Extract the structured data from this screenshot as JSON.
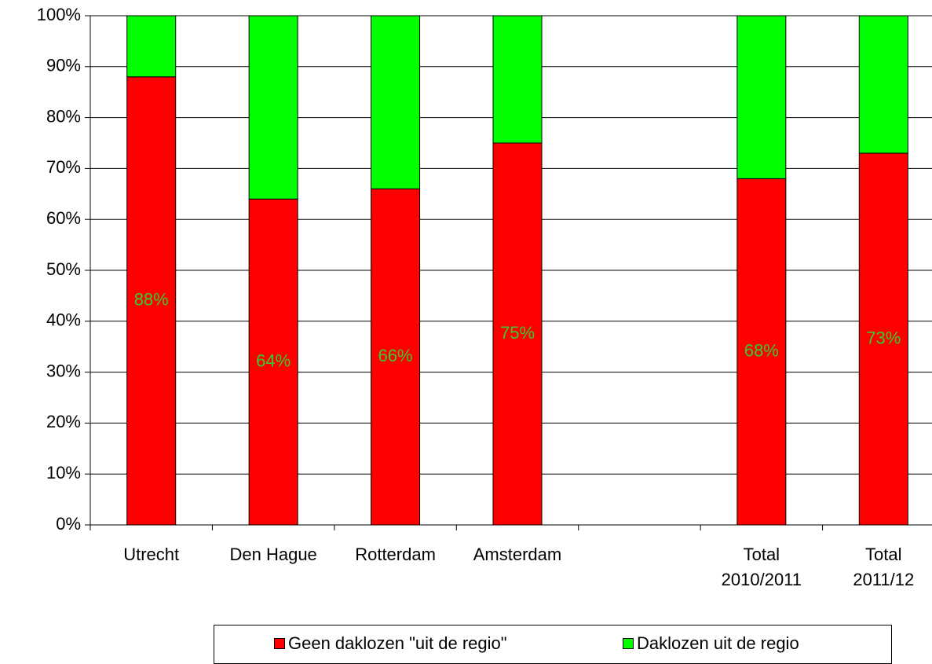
{
  "chart_data": {
    "type": "stacked_bar",
    "categories": [
      "Utrecht",
      "Den Hague",
      "Rotterdam",
      "Amsterdam",
      null,
      "Total\n2010/2011",
      "Total\n2011/12"
    ],
    "series": [
      {
        "name": "Geen daklozen \"uit de regio\"",
        "color": "#ff0000",
        "values": [
          88,
          64,
          66,
          75,
          null,
          68,
          73
        ],
        "value_labels": [
          "88%",
          "64%",
          "66%",
          "75%",
          null,
          "68%",
          "73%"
        ],
        "label_color": "#33cc33"
      },
      {
        "name": "Daklozen uit de regio",
        "color": "#00ff00",
        "values": [
          12,
          36,
          34,
          25,
          null,
          32,
          27
        ]
      }
    ],
    "ylim": [
      0,
      100
    ],
    "yticks": [
      {
        "value": 0,
        "label": "0%"
      },
      {
        "value": 10,
        "label": "10%"
      },
      {
        "value": 20,
        "label": "20%"
      },
      {
        "value": 30,
        "label": "30%"
      },
      {
        "value": 40,
        "label": "40%"
      },
      {
        "value": 50,
        "label": "50%"
      },
      {
        "value": 60,
        "label": "60%"
      },
      {
        "value": 70,
        "label": "70%"
      },
      {
        "value": 80,
        "label": "80%"
      },
      {
        "value": 90,
        "label": "90%"
      },
      {
        "value": 100,
        "label": "100%"
      }
    ],
    "grid": true,
    "legend": "bottom"
  }
}
